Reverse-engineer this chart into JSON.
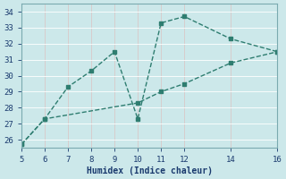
{
  "xlabel": "Humidex (Indice chaleur)",
  "bg_color": "#cce8ea",
  "grid_color": "#b0d8da",
  "line_color": "#2e7d70",
  "xlim": [
    5,
    16
  ],
  "ylim": [
    25.5,
    34.5
  ],
  "xticks": [
    5,
    6,
    7,
    8,
    9,
    10,
    11,
    12,
    14,
    16
  ],
  "yticks": [
    26,
    27,
    28,
    29,
    30,
    31,
    32,
    33,
    34
  ],
  "series1_x": [
    5,
    6,
    7,
    8,
    9,
    10,
    11,
    12,
    14,
    16
  ],
  "series1_y": [
    25.7,
    27.3,
    29.3,
    30.3,
    31.5,
    27.3,
    33.3,
    33.7,
    32.3,
    31.5
  ],
  "series2_x": [
    5,
    6,
    10,
    11,
    12,
    14,
    16
  ],
  "series2_y": [
    25.7,
    27.3,
    28.3,
    29.0,
    29.5,
    30.8,
    31.5
  ]
}
